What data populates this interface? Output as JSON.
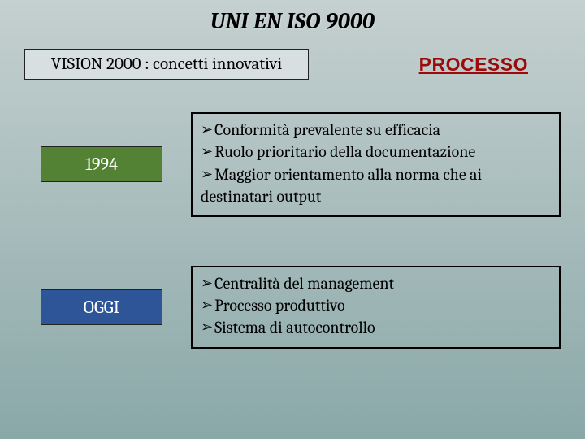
{
  "title": "UNI EN ISO 9000",
  "vision_label": "VISION 2000 : concetti innovativi",
  "processo_label": "PROCESSO",
  "colors": {
    "green_box": "#548235",
    "blue_box": "#2e5597",
    "processo_text": "#9b0b0b",
    "background_top": "#c5d0d0",
    "background_bottom": "#8aa8a8",
    "border": "#000000"
  },
  "sections": [
    {
      "label": "1994",
      "label_color": "green",
      "items": [
        "Conformità prevalente su efficacia",
        "Ruolo prioritario della documentazione",
        "Maggior orientamento alla norma che ai destinatari output"
      ]
    },
    {
      "label": "OGGI",
      "label_color": "blue",
      "items": [
        "Centralità del management",
        "Processo produttivo",
        "Sistema di autocontrollo"
      ]
    }
  ]
}
